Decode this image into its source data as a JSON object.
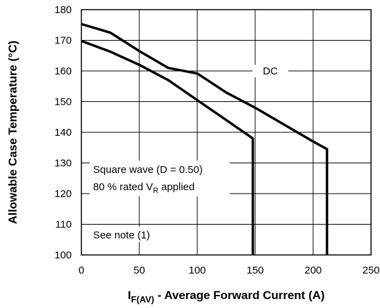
{
  "chart_data": {
    "type": "line",
    "xlim": [
      0,
      250
    ],
    "ylim": [
      100,
      180
    ],
    "x_ticks": [
      "0",
      "50",
      "100",
      "150",
      "200",
      "250"
    ],
    "y_ticks": [
      "100",
      "110",
      "120",
      "130",
      "140",
      "150",
      "160",
      "170",
      "180"
    ],
    "grid": true,
    "xlabel": {
      "main": "I",
      "sub": "F(AV)",
      "rest": " - Average Forward Current (A)"
    },
    "ylabel": "Allowable Case Temperature (°C)",
    "series": [
      {
        "name": "DC",
        "points": [
          [
            0,
            175.3
          ],
          [
            25,
            172.5
          ],
          [
            50,
            166.5
          ],
          [
            75,
            161
          ],
          [
            100,
            159.2
          ],
          [
            125,
            153
          ],
          [
            150,
            148
          ],
          [
            175,
            142.5
          ],
          [
            200,
            137
          ],
          [
            212,
            134.5
          ],
          [
            212,
            100
          ]
        ]
      },
      {
        "points": [
          [
            0,
            169.8
          ],
          [
            25,
            166.3
          ],
          [
            50,
            162
          ],
          [
            75,
            157
          ],
          [
            100,
            150.5
          ],
          [
            125,
            144
          ],
          [
            148,
            138
          ],
          [
            148,
            100
          ]
        ]
      }
    ],
    "annotations": {
      "series_label": "DC",
      "square_wave": "Square wave (D = 0.50)",
      "rated_prefix": "80 % rated V",
      "rated_sub": "R",
      "rated_suffix": " applied",
      "note": "See note (1)"
    }
  }
}
